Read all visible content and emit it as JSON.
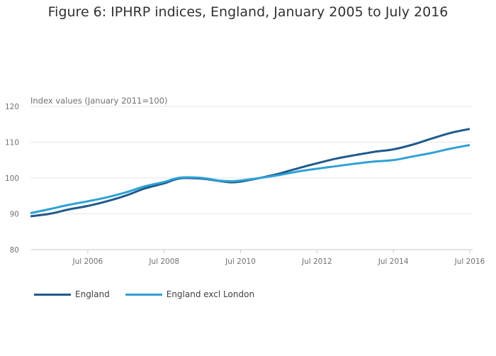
{
  "chart_data": {
    "type": "line",
    "title": "Figure 6: IPHRP indices, England, January 2005 to July 2016",
    "ylabel": "Index values (January 2011=100)",
    "xlabel": "",
    "ylim": [
      80,
      120
    ],
    "yticks": [
      80,
      90,
      100,
      110,
      120
    ],
    "x_range": [
      "2005-01",
      "2016-07"
    ],
    "xticks": [
      {
        "date": "2006-07",
        "label": "Jul 2006"
      },
      {
        "date": "2008-07",
        "label": "Jul 2008"
      },
      {
        "date": "2010-07",
        "label": "Jul 2010"
      },
      {
        "date": "2012-07",
        "label": "Jul 2012"
      },
      {
        "date": "2014-07",
        "label": "Jul 2014"
      },
      {
        "date": "2016-07",
        "label": "Jul 2016"
      }
    ],
    "grid": true,
    "legend_position": "bottom-left",
    "series": [
      {
        "name": "England",
        "color": "#1f5a8c",
        "points": [
          [
            "2005-01",
            89.3
          ],
          [
            "2005-07",
            90.0
          ],
          [
            "2006-01",
            91.2
          ],
          [
            "2006-07",
            92.2
          ],
          [
            "2007-01",
            93.5
          ],
          [
            "2007-07",
            95.1
          ],
          [
            "2008-01",
            97.1
          ],
          [
            "2008-07",
            98.5
          ],
          [
            "2008-12",
            99.9
          ],
          [
            "2009-07",
            99.8
          ],
          [
            "2009-12",
            99.2
          ],
          [
            "2010-04",
            98.8
          ],
          [
            "2010-07",
            99.0
          ],
          [
            "2011-01",
            100.0
          ],
          [
            "2011-07",
            101.2
          ],
          [
            "2012-01",
            102.7
          ],
          [
            "2012-07",
            104.1
          ],
          [
            "2013-01",
            105.4
          ],
          [
            "2013-07",
            106.4
          ],
          [
            "2014-01",
            107.3
          ],
          [
            "2014-07",
            108.0
          ],
          [
            "2015-01",
            109.3
          ],
          [
            "2015-07",
            111.0
          ],
          [
            "2016-01",
            112.6
          ],
          [
            "2016-07",
            113.7
          ]
        ]
      },
      {
        "name": "England excl London",
        "color": "#2ea1d6",
        "points": [
          [
            "2005-01",
            90.2
          ],
          [
            "2005-07",
            91.3
          ],
          [
            "2006-01",
            92.5
          ],
          [
            "2006-07",
            93.5
          ],
          [
            "2007-01",
            94.6
          ],
          [
            "2007-07",
            96.0
          ],
          [
            "2008-01",
            97.7
          ],
          [
            "2008-07",
            98.9
          ],
          [
            "2008-12",
            100.1
          ],
          [
            "2009-07",
            100.0
          ],
          [
            "2009-12",
            99.3
          ],
          [
            "2010-04",
            99.1
          ],
          [
            "2010-07",
            99.3
          ],
          [
            "2011-01",
            100.0
          ],
          [
            "2011-07",
            100.8
          ],
          [
            "2012-01",
            101.8
          ],
          [
            "2012-07",
            102.6
          ],
          [
            "2013-01",
            103.3
          ],
          [
            "2013-07",
            104.0
          ],
          [
            "2014-01",
            104.6
          ],
          [
            "2014-07",
            105.0
          ],
          [
            "2015-01",
            106.0
          ],
          [
            "2015-07",
            107.0
          ],
          [
            "2016-01",
            108.2
          ],
          [
            "2016-07",
            109.2
          ]
        ]
      }
    ]
  }
}
